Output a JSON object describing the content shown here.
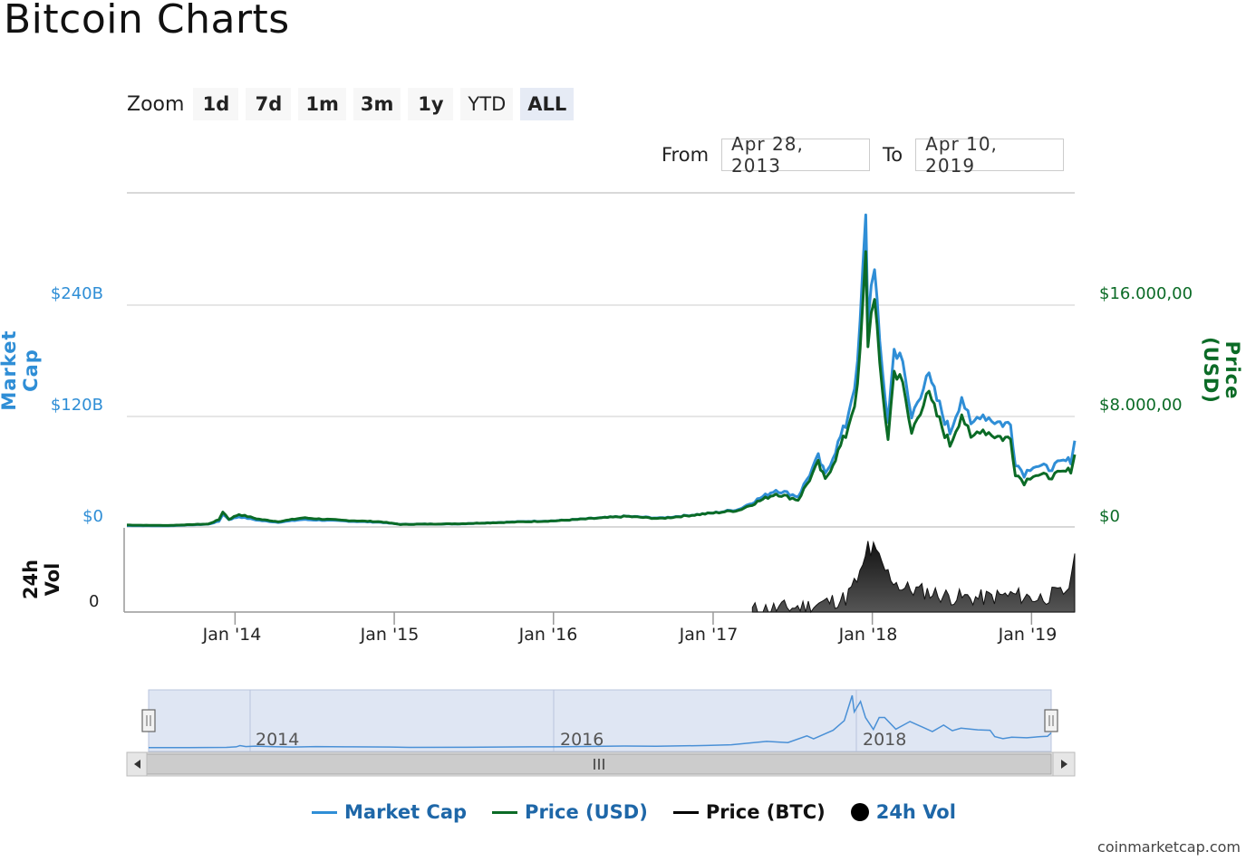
{
  "page": {
    "title": "Bitcoin Charts"
  },
  "zoom": {
    "label": "Zoom",
    "buttons": [
      {
        "label": "1d"
      },
      {
        "label": "7d"
      },
      {
        "label": "1m"
      },
      {
        "label": "3m"
      },
      {
        "label": "1y"
      },
      {
        "label": "YTD"
      },
      {
        "label": "ALL"
      }
    ],
    "active": "ALL"
  },
  "range": {
    "from_label": "From",
    "from_value": "Apr 28, 2013",
    "to_label": "To",
    "to_value": "Apr 10, 2019"
  },
  "credit": "coinmarketcap.com",
  "colors": {
    "market_cap": "#2f8ed6",
    "price_usd": "#0b6b26",
    "price_btc": "#000000",
    "volume": "#222222",
    "navigator_fill": "#dfe6f3"
  },
  "chart_data": {
    "type": "line",
    "x_axis": {
      "range": [
        "Apr 28, 2013",
        "Apr 10, 2019"
      ],
      "ticks": [
        "Jan '14",
        "Jan '15",
        "Jan '16",
        "Jan '17",
        "Jan '18",
        "Jan '19"
      ]
    },
    "y_left": {
      "title": "Market Cap",
      "ticks": [
        "$0",
        "$120B",
        "$240B"
      ],
      "range": [
        0,
        360
      ]
    },
    "y_right": {
      "title": "Price (USD)",
      "ticks": [
        "$0",
        "$8.000,00",
        "$16.000,00"
      ],
      "range": [
        0,
        24000
      ]
    },
    "y_volume": {
      "title": "24h Vol",
      "ticks": [
        "0"
      ]
    },
    "navigator_labels": [
      "2014",
      "2016",
      "2018"
    ],
    "legend": [
      "Market Cap",
      "Price (USD)",
      "Price (BTC)",
      "24h Vol"
    ],
    "legend_placement": "bottom",
    "series": [
      {
        "name": "Market Cap",
        "unit": "B USD",
        "points": [
          [
            "2013-04-28",
            1.5
          ],
          [
            "2013-08-01",
            1.2
          ],
          [
            "2013-11-01",
            3
          ],
          [
            "2013-11-25",
            6
          ],
          [
            "2013-12-04",
            14
          ],
          [
            "2013-12-18",
            8
          ],
          [
            "2014-01-10",
            11
          ],
          [
            "2014-02-25",
            7
          ],
          [
            "2014-04-10",
            5
          ],
          [
            "2014-06-05",
            8
          ],
          [
            "2014-09-01",
            6.5
          ],
          [
            "2014-12-01",
            5
          ],
          [
            "2015-01-15",
            2.8
          ],
          [
            "2015-06-01",
            3.3
          ],
          [
            "2015-11-05",
            6
          ],
          [
            "2016-01-01",
            6.5
          ],
          [
            "2016-06-16",
            11.5
          ],
          [
            "2016-09-01",
            9.5
          ],
          [
            "2017-01-01",
            15
          ],
          [
            "2017-03-01",
            19
          ],
          [
            "2017-05-25",
            40
          ],
          [
            "2017-07-15",
            33
          ],
          [
            "2017-08-30",
            75
          ],
          [
            "2017-09-15",
            56
          ],
          [
            "2017-11-01",
            110
          ],
          [
            "2017-11-28",
            170
          ],
          [
            "2017-12-10",
            270
          ],
          [
            "2017-12-17",
            328
          ],
          [
            "2017-12-22",
            225
          ],
          [
            "2018-01-06",
            290
          ],
          [
            "2018-01-18",
            190
          ],
          [
            "2018-02-06",
            115
          ],
          [
            "2018-02-20",
            190
          ],
          [
            "2018-03-05",
            190
          ],
          [
            "2018-04-01",
            117
          ],
          [
            "2018-05-05",
            165
          ],
          [
            "2018-06-28",
            102
          ],
          [
            "2018-07-25",
            142
          ],
          [
            "2018-08-15",
            107
          ],
          [
            "2018-09-05",
            123
          ],
          [
            "2018-10-15",
            113
          ],
          [
            "2018-11-14",
            110
          ],
          [
            "2018-11-25",
            70
          ],
          [
            "2018-12-15",
            57
          ],
          [
            "2019-01-05",
            67
          ],
          [
            "2019-02-10",
            63
          ],
          [
            "2019-03-15",
            70
          ],
          [
            "2019-04-01",
            72
          ],
          [
            "2019-04-10",
            93
          ]
        ]
      },
      {
        "name": "Price (USD)",
        "unit": "USD",
        "points": [
          [
            "2013-04-28",
            135
          ],
          [
            "2013-08-01",
            105
          ],
          [
            "2013-11-01",
            210
          ],
          [
            "2013-11-25",
            520
          ],
          [
            "2013-12-04",
            1100
          ],
          [
            "2013-12-18",
            550
          ],
          [
            "2014-01-10",
            900
          ],
          [
            "2014-02-25",
            550
          ],
          [
            "2014-04-10",
            380
          ],
          [
            "2014-06-05",
            650
          ],
          [
            "2014-09-01",
            480
          ],
          [
            "2014-12-01",
            370
          ],
          [
            "2015-01-15",
            180
          ],
          [
            "2015-06-01",
            230
          ],
          [
            "2015-11-05",
            380
          ],
          [
            "2016-01-01",
            430
          ],
          [
            "2016-06-16",
            760
          ],
          [
            "2016-09-01",
            600
          ],
          [
            "2017-01-01",
            1000
          ],
          [
            "2017-03-01",
            1200
          ],
          [
            "2017-05-25",
            2400
          ],
          [
            "2017-07-15",
            1950
          ],
          [
            "2017-08-30",
            4550
          ],
          [
            "2017-09-15",
            3350
          ],
          [
            "2017-11-01",
            6600
          ],
          [
            "2017-11-28",
            9800
          ],
          [
            "2017-12-10",
            15500
          ],
          [
            "2017-12-17",
            19300
          ],
          [
            "2017-12-22",
            13300
          ],
          [
            "2018-01-06",
            17100
          ],
          [
            "2018-01-18",
            11200
          ],
          [
            "2018-02-06",
            6400
          ],
          [
            "2018-02-20",
            11100
          ],
          [
            "2018-03-05",
            11100
          ],
          [
            "2018-04-01",
            6700
          ],
          [
            "2018-05-05",
            9700
          ],
          [
            "2018-06-28",
            5900
          ],
          [
            "2018-07-25",
            8200
          ],
          [
            "2018-08-15",
            6200
          ],
          [
            "2018-09-05",
            7100
          ],
          [
            "2018-10-15",
            6500
          ],
          [
            "2018-11-14",
            6300
          ],
          [
            "2018-11-25",
            3900
          ],
          [
            "2018-12-15",
            3200
          ],
          [
            "2019-01-05",
            3800
          ],
          [
            "2019-02-10",
            3600
          ],
          [
            "2019-03-15",
            3900
          ],
          [
            "2019-04-01",
            4100
          ],
          [
            "2019-04-10",
            5200
          ]
        ]
      },
      {
        "name": "24h Vol",
        "unit": "relative",
        "points": [
          [
            "2017-04-01",
            0.03
          ],
          [
            "2017-08-01",
            0.08
          ],
          [
            "2017-11-01",
            0.2
          ],
          [
            "2017-12-10",
            0.6
          ],
          [
            "2017-12-22",
            0.95
          ],
          [
            "2018-01-10",
            0.8
          ],
          [
            "2018-02-06",
            0.55
          ],
          [
            "2018-03-10",
            0.35
          ],
          [
            "2018-05-01",
            0.3
          ],
          [
            "2018-07-01",
            0.22
          ],
          [
            "2018-09-01",
            0.2
          ],
          [
            "2018-11-20",
            0.25
          ],
          [
            "2019-01-15",
            0.2
          ],
          [
            "2019-03-15",
            0.28
          ],
          [
            "2019-04-03",
            0.45
          ],
          [
            "2019-04-10",
            0.85
          ]
        ]
      }
    ]
  }
}
